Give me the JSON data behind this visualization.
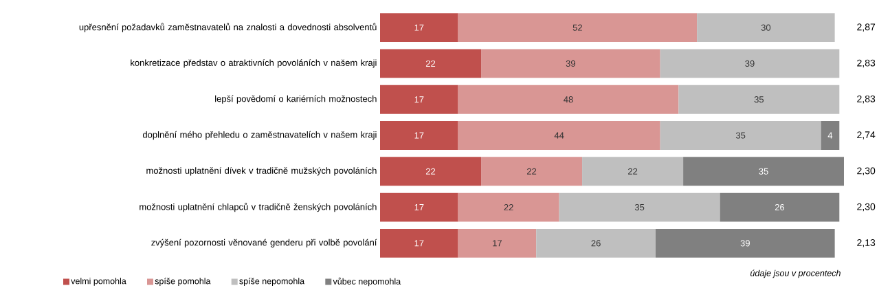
{
  "chart_data": {
    "type": "bar",
    "orientation": "horizontal",
    "stacked": true,
    "data_labels": true,
    "tick_labels": "y",
    "legend": "bottom",
    "categories": [
      "upřesnění požadavků zaměstnavatelů na znalosti a dovednosti absolventů",
      "konkretizace představ o atraktivních povoláních v našem kraji",
      "lepší povědomí o kariérních možnostech",
      "doplnění mého přehledu o zaměstnavatelích v našem kraji",
      "možnosti uplatnění dívek v tradičně mužských povoláních",
      "možnosti uplatnění chlapců v tradičně ženských povoláních",
      "zvýšení pozornosti věnované genderu při volbě povolání"
    ],
    "series": [
      {
        "name": "velmi pomohla",
        "color": "#c0504d",
        "values": [
          17,
          22,
          17,
          17,
          22,
          17,
          17
        ]
      },
      {
        "name": "spíše pomohla",
        "color": "#d99694",
        "values": [
          52,
          39,
          48,
          44,
          22,
          22,
          17
        ]
      },
      {
        "name": "spíše nepomohla",
        "color": "#bfbfbf",
        "values": [
          30,
          39,
          35,
          35,
          22,
          35,
          26
        ]
      },
      {
        "name": "vůbec nepomohla",
        "color": "#808080",
        "values": [
          null,
          null,
          null,
          4,
          35,
          26,
          39
        ]
      }
    ],
    "annotations": [
      "2,87",
      "2,83",
      "2,83",
      "2,74",
      "2,30",
      "2,30",
      "2,13",
      "údaje jsou v procentech"
    ]
  }
}
